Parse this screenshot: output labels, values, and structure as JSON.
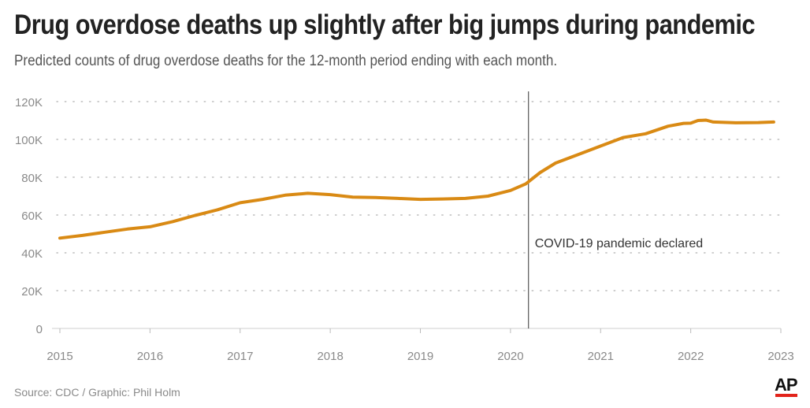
{
  "header": {
    "title": "Drug overdose deaths up slightly after big jumps during pandemic",
    "subtitle": "Predicted counts of drug overdose deaths for the 12-month period ending with each month."
  },
  "footer": {
    "source": "Source: CDC / Graphic: Phil Holm",
    "logo_text": "AP"
  },
  "colors": {
    "line": "#d98a14",
    "grid": "#bdbdbd",
    "axis_text": "#8a8a8a",
    "brand_red": "#e2231a"
  },
  "chart_data": {
    "type": "line",
    "title": "Drug overdose deaths up slightly after big jumps during pandemic",
    "subtitle": "Predicted counts of drug overdose deaths for the 12-month period ending with each month.",
    "xlabel": "",
    "ylabel": "",
    "xlim": [
      2015,
      2023
    ],
    "ylim": [
      0,
      120000
    ],
    "x_ticks": [
      "2015",
      "2016",
      "2017",
      "2018",
      "2019",
      "2020",
      "2021",
      "2022",
      "2023"
    ],
    "y_ticks": [
      {
        "value": 0,
        "label": "0"
      },
      {
        "value": 20000,
        "label": "20K"
      },
      {
        "value": 40000,
        "label": "40K"
      },
      {
        "value": 60000,
        "label": "60K"
      },
      {
        "value": 80000,
        "label": "80K"
      },
      {
        "value": 100000,
        "label": "100K"
      },
      {
        "value": 120000,
        "label": "120K"
      }
    ],
    "grid": true,
    "legend": "none",
    "annotation": {
      "x": 2020.2,
      "label": "COVID-19 pandemic declared"
    },
    "series": [
      {
        "x": [
          2015.0,
          2015.25,
          2015.5,
          2015.75,
          2016.0,
          2016.25,
          2016.5,
          2016.75,
          2017.0,
          2017.25,
          2017.5,
          2017.75,
          2018.0,
          2018.25,
          2018.5,
          2018.75,
          2019.0,
          2019.25,
          2019.5,
          2019.75,
          2020.0,
          2020.17,
          2020.33,
          2020.5,
          2020.75,
          2021.0,
          2021.25,
          2021.5,
          2021.75,
          2021.92,
          2022.0,
          2022.08,
          2022.17,
          2022.25,
          2022.5,
          2022.75,
          2022.92
        ],
        "y": [
          47800,
          49200,
          50900,
          52600,
          53800,
          56500,
          59800,
          62800,
          66500,
          68300,
          70500,
          71500,
          70800,
          69500,
          69300,
          68800,
          68300,
          68500,
          68800,
          70000,
          73000,
          76500,
          82500,
          87500,
          92000,
          96500,
          101000,
          103000,
          107000,
          108500,
          108600,
          110000,
          110200,
          109200,
          108800,
          108900,
          109200
        ]
      }
    ]
  }
}
